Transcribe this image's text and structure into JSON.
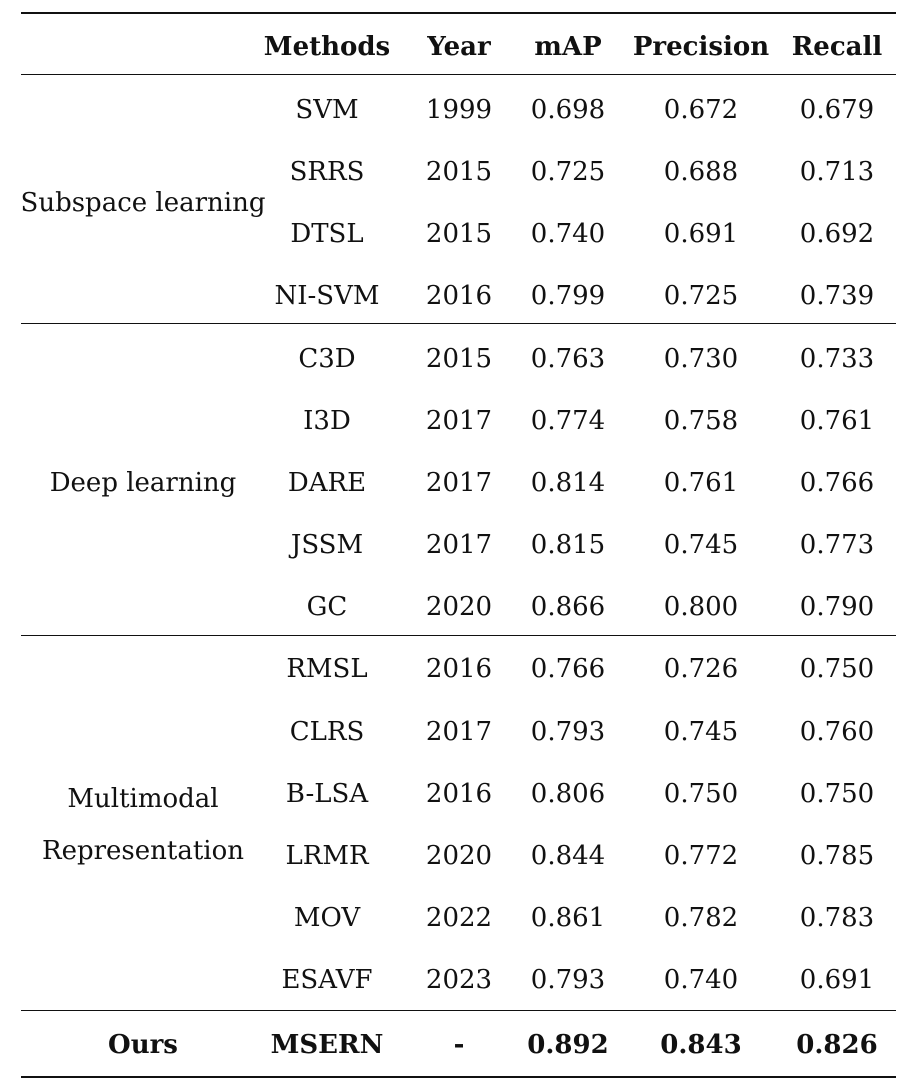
{
  "table": {
    "headers": [
      "",
      "Methods",
      "Year",
      "mAP",
      "Precision",
      "Recall"
    ],
    "groups": [
      {
        "name_lines": [
          "Subspace learning"
        ],
        "rows": [
          [
            "SVM",
            "1999",
            "0.698",
            "0.672",
            "0.679"
          ],
          [
            "SRRS",
            "2015",
            "0.725",
            "0.688",
            "0.713"
          ],
          [
            "DTSL",
            "2015",
            "0.740",
            "0.691",
            "0.692"
          ],
          [
            "NI-SVM",
            "2016",
            "0.799",
            "0.725",
            "0.739"
          ]
        ]
      },
      {
        "name_lines": [
          "Deep learning"
        ],
        "rows": [
          [
            "C3D",
            "2015",
            "0.763",
            "0.730",
            "0.733"
          ],
          [
            "I3D",
            "2017",
            "0.774",
            "0.758",
            "0.761"
          ],
          [
            "DARE",
            "2017",
            "0.814",
            "0.761",
            "0.766"
          ],
          [
            "JSSM",
            "2017",
            "0.815",
            "0.745",
            "0.773"
          ],
          [
            "GC",
            "2020",
            "0.866",
            "0.800",
            "0.790"
          ]
        ]
      },
      {
        "name_lines": [
          "Multimodal",
          "Representation"
        ],
        "rows": [
          [
            "RMSL",
            "2016",
            "0.766",
            "0.726",
            "0.750"
          ],
          [
            "CLRS",
            "2017",
            "0.793",
            "0.745",
            "0.760"
          ],
          [
            "B-LSA",
            "2016",
            "0.806",
            "0.750",
            "0.750"
          ],
          [
            "LRMR",
            "2020",
            "0.844",
            "0.772",
            "0.785"
          ],
          [
            "MOV",
            "2022",
            "0.861",
            "0.782",
            "0.783"
          ],
          [
            "ESAVF",
            "2023",
            "0.793",
            "0.740",
            "0.691"
          ]
        ]
      }
    ],
    "ours": {
      "label": "Ours",
      "row": [
        "MSERN",
        "-",
        "0.892",
        "0.843",
        "0.826"
      ]
    }
  }
}
